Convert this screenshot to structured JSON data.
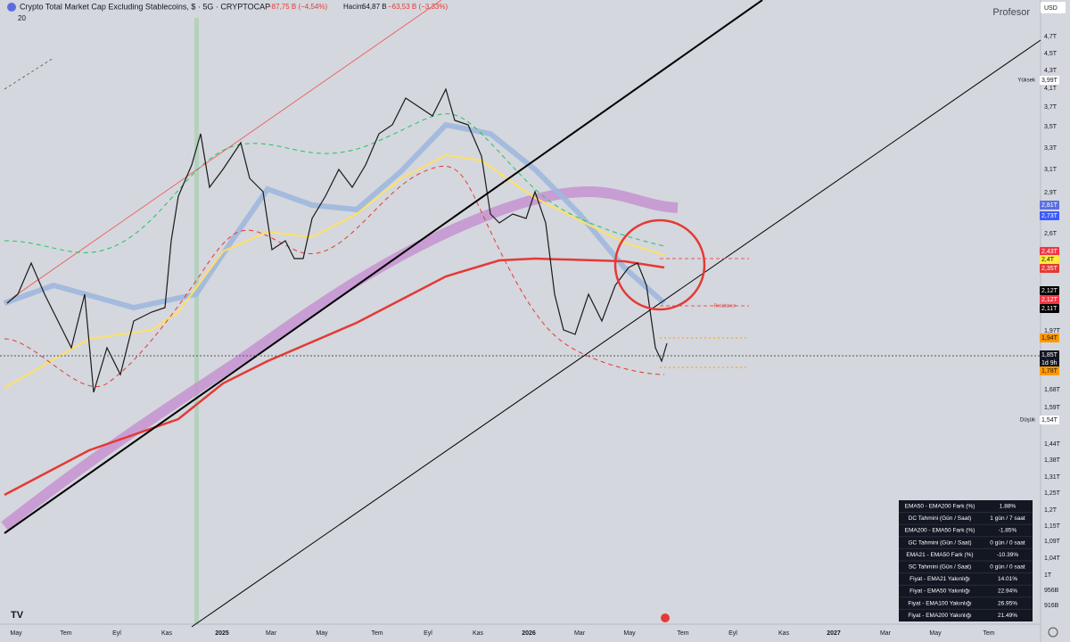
{
  "header": {
    "symbol": "Crypto Total Market Cap Excluding Stablecoins, $ · 5G · CRYPTOCAP",
    "change": "−87,75 B (−4,54%)",
    "volume_label": "Hacim",
    "volume": "64,87 B",
    "volume_change": "−63,53 B (−3,33%)",
    "indicator": "20"
  },
  "brand": "Profesor",
  "currency": "USD",
  "price_axis": [
    "4,7T",
    "4,5T",
    "4,3T",
    "4,1T",
    "3,7T",
    "3,5T",
    "3,3T",
    "3,1T",
    "2,9T",
    "2,6T",
    "1,97T",
    "1,68T",
    "1,59T",
    "1,44T",
    "1,38T",
    "1,31T",
    "1,25T",
    "1,2T",
    "1,15T",
    "1,09T",
    "1,04T",
    "1T",
    "956B",
    "916B"
  ],
  "badges": [
    {
      "label": "3,99T",
      "color": "#ffffff",
      "text": "#131722"
    },
    {
      "label": "2,81T",
      "color": "#5b6ee1",
      "text": "#ffffff"
    },
    {
      "label": "2,73T",
      "color": "#3d5afe",
      "text": "#ffffff"
    },
    {
      "label": "2,43T",
      "color": "#f23645",
      "text": "#ffffff"
    },
    {
      "label": "2,4T",
      "color": "#ffeb3b",
      "text": "#131722"
    },
    {
      "label": "2,35T",
      "color": "#e53935",
      "text": "#ffffff"
    },
    {
      "label": "2,12T",
      "color": "#000000",
      "text": "#ffffff"
    },
    {
      "label": "2,12T",
      "color": "#f23645",
      "text": "#ffffff"
    },
    {
      "label": "2,11T",
      "color": "#000000",
      "text": "#ffffff"
    },
    {
      "label": "1,94T",
      "color": "#ff9800",
      "text": "#131722"
    },
    {
      "label": "1,85T",
      "color": "#131722",
      "text": "#ffffff"
    },
    {
      "label": "1d 9h",
      "color": "#131722",
      "text": "#ffffff"
    },
    {
      "label": "1,78T",
      "color": "#ff9800",
      "text": "#131722"
    },
    {
      "label": "1,54T",
      "color": "#ffffff",
      "text": "#131722"
    }
  ],
  "markers": {
    "high": "Yüksek",
    "low": "Düşük",
    "resistance": "Resistance"
  },
  "time_axis": [
    "May",
    "Tem",
    "Eyl",
    "Kas",
    "2025",
    "Mar",
    "May",
    "Tem",
    "Eyl",
    "Kas",
    "2026",
    "Mar",
    "May",
    "Tem",
    "Eyl",
    "Kas",
    "2027",
    "Mar",
    "May",
    "Tem"
  ],
  "table": {
    "rows": [
      [
        "EMA50 - EMA200 Fark (%)",
        "1.88%"
      ],
      [
        "DC Tahmini (Gün / Saat)",
        "1 gün / 7 saat"
      ],
      [
        "EMA200 - EMA50 Fark (%)",
        "-1.85%"
      ],
      [
        "GC Tahmini (Gün / Saat)",
        "0 gün / 0 saat"
      ],
      [
        "EMA21 - EMA50 Fark (%)",
        "-10.39%"
      ],
      [
        "SC Tahmini (Gün / Saat)",
        "0 gün / 0 saat"
      ],
      [
        "Fiyat - EMA21 Yakınlığı",
        "14.01%"
      ],
      [
        "Fiyat - EMA50 Yakınlığı",
        "22.94%"
      ],
      [
        "Fiyat - EMA100 Yakınlığı",
        "26.95%"
      ],
      [
        "Fiyat - EMA200 Yakınlığı",
        "21.49%"
      ]
    ]
  }
}
